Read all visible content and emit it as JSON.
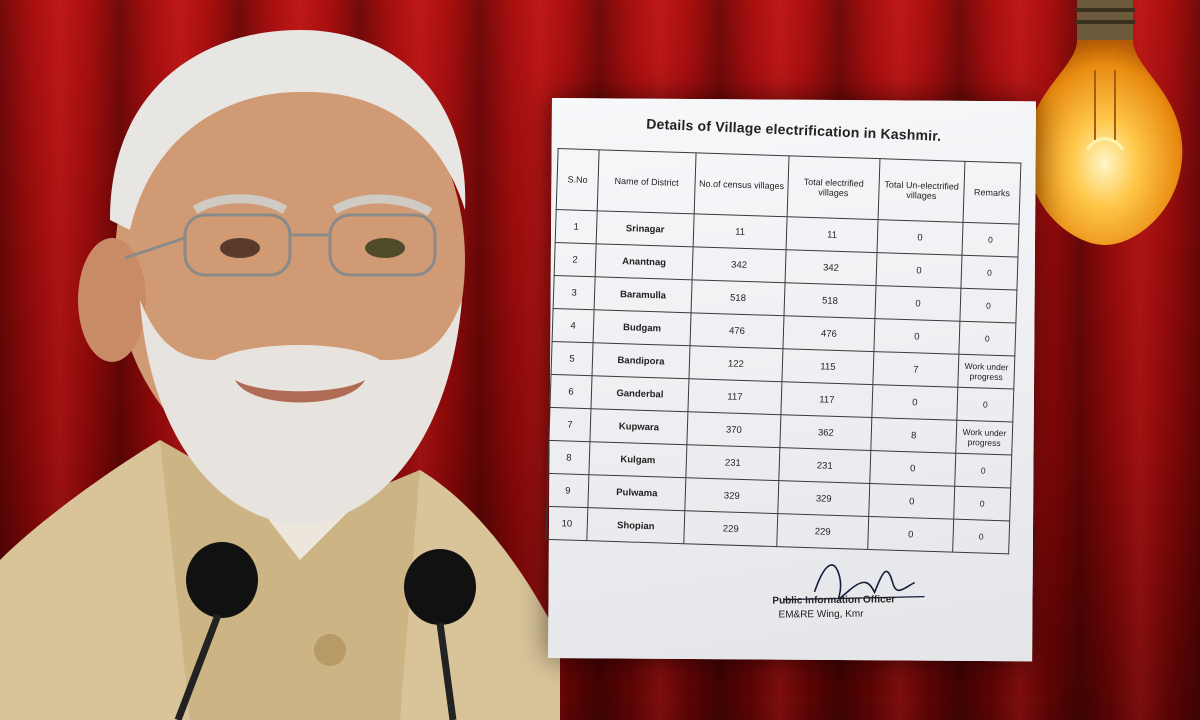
{
  "document": {
    "title": "Details of Village electrification in Kashmir.",
    "columns": [
      "S.No",
      "Name of District",
      "No.of census villages",
      "Total electrified villages",
      "Total Un-electrified villages",
      "Remarks"
    ],
    "rows": [
      {
        "sno": "1",
        "district": "Srinagar",
        "census": "11",
        "electrified": "11",
        "unelectrified": "0",
        "remarks": "0"
      },
      {
        "sno": "2",
        "district": "Anantnag",
        "census": "342",
        "electrified": "342",
        "unelectrified": "0",
        "remarks": "0"
      },
      {
        "sno": "3",
        "district": "Baramulla",
        "census": "518",
        "electrified": "518",
        "unelectrified": "0",
        "remarks": "0"
      },
      {
        "sno": "4",
        "district": "Budgam",
        "census": "476",
        "electrified": "476",
        "unelectrified": "0",
        "remarks": "0"
      },
      {
        "sno": "5",
        "district": "Bandipora",
        "census": "122",
        "electrified": "115",
        "unelectrified": "7",
        "remarks": "Work under progress"
      },
      {
        "sno": "6",
        "district": "Ganderbal",
        "census": "117",
        "electrified": "117",
        "unelectrified": "0",
        "remarks": "0"
      },
      {
        "sno": "7",
        "district": "Kupwara",
        "census": "370",
        "electrified": "362",
        "unelectrified": "8",
        "remarks": "Work under progress"
      },
      {
        "sno": "8",
        "district": "Kulgam",
        "census": "231",
        "electrified": "231",
        "unelectrified": "0",
        "remarks": "0"
      },
      {
        "sno": "9",
        "district": "Pulwama",
        "census": "329",
        "electrified": "329",
        "unelectrified": "0",
        "remarks": "0"
      },
      {
        "sno": "10",
        "district": "Shopian",
        "census": "229",
        "electrified": "229",
        "unelectrified": "0",
        "remarks": "0"
      }
    ],
    "signatory": {
      "line1": "Public Information Officer",
      "line2": "EM&RE Wing, Kmr"
    }
  }
}
